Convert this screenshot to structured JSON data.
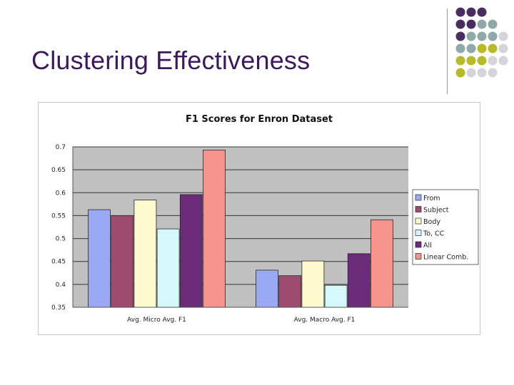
{
  "slide": {
    "title": "Clustering Effectiveness",
    "accent_colors": [
      "#4a2c5e",
      "#8fa8a8",
      "#b8ba2a",
      "#d4d4dc"
    ]
  },
  "chart_data": {
    "type": "bar",
    "title": "F1 Scores for Enron Dataset",
    "xlabel": "",
    "ylabel": "",
    "ylim": [
      0.35,
      0.7
    ],
    "yticks": [
      0.35,
      0.4,
      0.45,
      0.5,
      0.55,
      0.6,
      0.65,
      0.7
    ],
    "ytick_labels": [
      "0.35",
      "0.4",
      "0.45",
      "0.5",
      "0.55",
      "0.6",
      "0.65",
      "0.7"
    ],
    "categories": [
      "Avg. Micro Avg. F1",
      "Avg. Macro Avg. F1"
    ],
    "grid": true,
    "legend_position": "right",
    "series": [
      {
        "name": "From",
        "color": "#9aa9f2",
        "values": [
          0.563,
          0.431
        ]
      },
      {
        "name": "Subject",
        "color": "#9e4b70",
        "values": [
          0.55,
          0.419
        ]
      },
      {
        "name": "Body",
        "color": "#fffbd0",
        "values": [
          0.584,
          0.451
        ]
      },
      {
        "name": "To, CC",
        "color": "#d6f8fb",
        "values": [
          0.521,
          0.398
        ]
      },
      {
        "name": "All",
        "color": "#6a2b78",
        "values": [
          0.596,
          0.467
        ]
      },
      {
        "name": "Linear Comb.",
        "color": "#f4948c",
        "values": [
          0.693,
          0.541
        ]
      }
    ]
  }
}
